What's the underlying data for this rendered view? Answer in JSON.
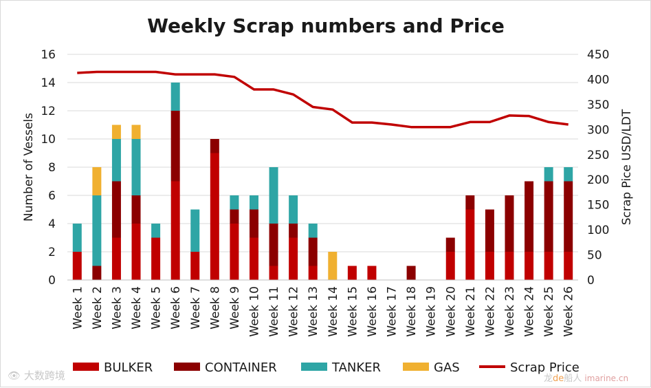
{
  "chart_data": {
    "type": "bar",
    "stacked": true,
    "title": "Weekly Scrap numbers and Price",
    "ylabel": "Number of Vessels",
    "y2label": "Scrap Pice USD/LDT",
    "ylim": [
      0,
      16
    ],
    "y2lim": [
      0,
      450
    ],
    "yticks": [
      "0",
      "2",
      "4",
      "6",
      "8",
      "10",
      "12",
      "14",
      "16"
    ],
    "y2ticks": [
      "0",
      "50",
      "100",
      "150",
      "200",
      "250",
      "300",
      "350",
      "400",
      "450"
    ],
    "categories": [
      "Week 1",
      "Week 2",
      "Week 3",
      "Week 4",
      "Week 5",
      "Week 6",
      "Week 7",
      "Week 8",
      "Week 9",
      "Week 10",
      "Week 11",
      "Week 12",
      "Week 13",
      "Week 14",
      "Week 15",
      "Week 16",
      "Week 17",
      "Week 18",
      "Week 19",
      "Week 20",
      "Week 21",
      "Week 22",
      "Week 23",
      "Week 24",
      "Week 25",
      "Week 26"
    ],
    "series": [
      {
        "name": "BULKER",
        "color": "#c00000",
        "values": [
          2,
          0,
          3,
          4,
          3,
          7,
          2,
          9,
          4,
          3,
          1,
          3,
          1,
          0,
          1,
          1,
          0,
          0,
          0,
          2,
          5,
          2,
          2,
          2,
          2,
          2
        ]
      },
      {
        "name": "CONTAINER",
        "color": "#8b0000",
        "values": [
          0,
          1,
          4,
          2,
          0,
          5,
          0,
          1,
          1,
          2,
          3,
          1,
          2,
          0,
          0,
          0,
          0,
          1,
          0,
          1,
          1,
          3,
          4,
          5,
          5,
          5
        ]
      },
      {
        "name": "TANKER",
        "color": "#2ea5a5",
        "values": [
          2,
          5,
          3,
          4,
          1,
          2,
          3,
          0,
          1,
          1,
          4,
          2,
          1,
          0,
          0,
          0,
          0,
          0,
          0,
          0,
          0,
          0,
          0,
          0,
          1,
          1
        ]
      },
      {
        "name": "GAS",
        "color": "#f0b030",
        "values": [
          0,
          2,
          1,
          1,
          0,
          0,
          0,
          0,
          0,
          0,
          0,
          0,
          0,
          2,
          0,
          0,
          0,
          0,
          0,
          0,
          0,
          0,
          0,
          0,
          0,
          0
        ]
      }
    ],
    "line": {
      "name": "Scrap Price",
      "color": "#c00000",
      "axis": "right",
      "values": [
        413,
        415,
        415,
        415,
        415,
        410,
        410,
        410,
        405,
        380,
        380,
        370,
        345,
        340,
        314,
        314,
        310,
        305,
        305,
        305,
        315,
        315,
        328,
        327,
        315,
        310
      ]
    },
    "legend": [
      "BULKER",
      "CONTAINER",
      "TANKER",
      "GAS",
      "Scrap Price"
    ],
    "legend_position": "bottom"
  },
  "watermarks": {
    "left": "大数跨境",
    "right_a": "龙",
    "right_b": "de",
    "right_c": "船人",
    "right_d": "imarine.cn"
  }
}
